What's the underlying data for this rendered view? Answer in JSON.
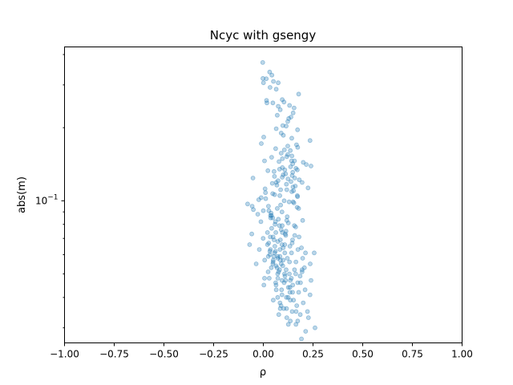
{
  "chart_data": {
    "type": "scatter",
    "title": "Ncyc with gsengy",
    "xlabel": "ρ",
    "ylabel": "abs(m)",
    "xlim": [
      -1.0,
      1.0
    ],
    "ylim": [
      0.026,
      0.43
    ],
    "yscale": "log",
    "xticks": [
      -1.0,
      -0.75,
      -0.5,
      -0.25,
      0.0,
      0.25,
      0.5,
      0.75,
      1.0
    ],
    "xtick_labels": [
      "−1.00",
      "−0.75",
      "−0.50",
      "−0.25",
      "0.00",
      "0.25",
      "0.50",
      "0.75",
      "1.00"
    ],
    "yticks": [
      {
        "value": 0.1,
        "base": "10",
        "exp": "−1"
      }
    ],
    "grid": false,
    "point_color": "#1f77b4",
    "point_alpha": 0.3,
    "series": [
      {
        "points": [
          [
            -0.003,
            0.371
          ],
          [
            0.032,
            0.339
          ],
          [
            0.043,
            0.329
          ],
          [
            -0.002,
            0.319
          ],
          [
            0.015,
            0.318
          ],
          [
            0.051,
            0.31
          ],
          [
            0.075,
            0.306
          ],
          [
            0.001,
            0.306
          ],
          [
            0.034,
            0.293
          ],
          [
            0.065,
            0.288
          ],
          [
            0.178,
            0.275
          ],
          [
            0.016,
            0.259
          ],
          [
            0.095,
            0.261
          ],
          [
            0.104,
            0.255
          ],
          [
            0.018,
            0.253
          ],
          [
            0.048,
            0.253
          ],
          [
            0.132,
            0.247
          ],
          [
            0.155,
            0.241
          ],
          [
            0.085,
            0.237
          ],
          [
            0.15,
            0.23
          ],
          [
            0.07,
            0.225
          ],
          [
            0.128,
            0.218
          ],
          [
            0.123,
            0.212
          ],
          [
            0.098,
            0.204
          ],
          [
            0.065,
            0.198
          ],
          [
            0.172,
            0.196
          ],
          [
            0.101,
            0.186
          ],
          [
            0.002,
            0.183
          ],
          [
            0.143,
            0.181
          ],
          [
            0.235,
            0.177
          ],
          [
            -0.01,
            0.172
          ],
          [
            0.123,
            0.168
          ],
          [
            0.173,
            0.166
          ],
          [
            0.062,
            0.164
          ],
          [
            0.106,
            0.162
          ],
          [
            0.136,
            0.161
          ],
          [
            0.09,
            0.157
          ],
          [
            0.144,
            0.153
          ],
          [
            0.118,
            0.152
          ],
          [
            0.042,
            0.151
          ],
          [
            0.096,
            0.149
          ],
          [
            0.157,
            0.146
          ],
          [
            0.006,
            0.146
          ],
          [
            0.142,
            0.146
          ],
          [
            0.201,
            0.144
          ],
          [
            0.148,
            0.142
          ],
          [
            0.216,
            0.141
          ],
          [
            0.24,
            0.139
          ],
          [
            0.137,
            0.138
          ],
          [
            0.096,
            0.137
          ],
          [
            0.164,
            0.136
          ],
          [
            0.082,
            0.135
          ],
          [
            0.171,
            0.134
          ],
          [
            0.023,
            0.133
          ],
          [
            0.054,
            0.132
          ],
          [
            0.148,
            0.131
          ],
          [
            0.112,
            0.129
          ],
          [
            0.1,
            0.128
          ],
          [
            0.145,
            0.127
          ],
          [
            0.056,
            0.126
          ],
          [
            0.095,
            0.125
          ],
          [
            -0.052,
            0.124
          ],
          [
            0.124,
            0.123
          ],
          [
            0.181,
            0.122
          ],
          [
            0.074,
            0.121
          ],
          [
            0.139,
            0.12
          ],
          [
            0.195,
            0.119
          ],
          [
            0.045,
            0.118
          ],
          [
            0.116,
            0.117
          ],
          [
            0.068,
            0.116
          ],
          [
            0.161,
            0.115
          ],
          [
            0.149,
            0.114
          ],
          [
            0.225,
            0.113
          ],
          [
            0.009,
            0.112
          ],
          [
            0.087,
            0.111
          ],
          [
            0.152,
            0.11
          ],
          [
            0.143,
            0.109
          ],
          [
            0.011,
            0.108
          ],
          [
            0.047,
            0.107
          ],
          [
            0.057,
            0.106
          ],
          [
            0.171,
            0.105
          ],
          [
            0.172,
            0.104
          ],
          [
            -0.011,
            0.103
          ],
          [
            0.012,
            0.102
          ],
          [
            -0.023,
            0.101
          ],
          [
            0.105,
            0.1
          ],
          [
            0.15,
            0.099
          ],
          [
            0.154,
            0.098
          ],
          [
            -0.079,
            0.097
          ],
          [
            0.087,
            0.096
          ],
          [
            -0.056,
            0.095
          ],
          [
            0.17,
            0.094
          ],
          [
            0.178,
            0.093
          ],
          [
            -0.05,
            0.092
          ],
          [
            0.0,
            0.091
          ],
          [
            0.094,
            0.09
          ],
          [
            0.039,
            0.089
          ],
          [
            -0.028,
            0.088
          ],
          [
            0.036,
            0.087
          ],
          [
            0.12,
            0.086
          ],
          [
            0.037,
            0.085
          ],
          [
            0.047,
            0.085
          ],
          [
            0.076,
            0.084
          ],
          [
            0.198,
            0.083
          ],
          [
            0.061,
            0.082
          ],
          [
            0.126,
            0.081
          ],
          [
            0.059,
            0.08
          ],
          [
            0.095,
            0.079
          ],
          [
            0.081,
            0.079
          ],
          [
            0.163,
            0.078
          ],
          [
            0.042,
            0.077
          ],
          [
            0.09,
            0.076
          ],
          [
            0.114,
            0.075
          ],
          [
            0.096,
            0.074
          ],
          [
            0.11,
            0.073
          ],
          [
            -0.058,
            0.073
          ],
          [
            0.158,
            0.072
          ],
          [
            0.035,
            0.071
          ],
          [
            -0.001,
            0.07
          ],
          [
            0.054,
            0.069
          ],
          [
            0.147,
            0.069
          ],
          [
            0.073,
            0.068
          ],
          [
            0.027,
            0.067
          ],
          [
            -0.069,
            0.066
          ],
          [
            0.108,
            0.066
          ],
          [
            0.134,
            0.065
          ],
          [
            0.1,
            0.064
          ],
          [
            0.084,
            0.063
          ],
          [
            0.036,
            0.063
          ],
          [
            0.033,
            0.062
          ],
          [
            0.057,
            0.061
          ],
          [
            0.256,
            0.061
          ],
          [
            0.033,
            0.06
          ],
          [
            0.053,
            0.059
          ],
          [
            0.084,
            0.059
          ],
          [
            0.073,
            0.058
          ],
          [
            0.05,
            0.057
          ],
          [
            0.1,
            0.057
          ],
          [
            0.049,
            0.056
          ],
          [
            0.09,
            0.055
          ],
          [
            -0.036,
            0.055
          ],
          [
            0.064,
            0.054
          ],
          [
            0.207,
            0.053
          ],
          [
            0.069,
            0.053
          ],
          [
            0.195,
            0.052
          ],
          [
            0.077,
            0.051
          ],
          [
            0.195,
            0.051
          ],
          [
            0.107,
            0.05
          ],
          [
            0.131,
            0.05
          ],
          [
            0.109,
            0.049
          ],
          [
            0.073,
            0.048
          ],
          [
            0.006,
            0.048
          ],
          [
            0.136,
            0.047
          ],
          [
            0.105,
            0.046
          ],
          [
            0.173,
            0.046
          ],
          [
            0.003,
            0.045
          ],
          [
            0.064,
            0.045
          ],
          [
            0.126,
            0.044
          ],
          [
            0.134,
            0.044
          ],
          [
            0.21,
            0.043
          ],
          [
            0.065,
            0.043
          ],
          [
            0.147,
            0.042
          ],
          [
            0.094,
            0.041
          ],
          [
            0.235,
            0.041
          ],
          [
            0.116,
            0.04
          ],
          [
            0.072,
            0.04
          ],
          [
            0.152,
            0.039
          ],
          [
            0.136,
            0.039
          ],
          [
            0.084,
            0.038
          ],
          [
            0.168,
            0.037
          ],
          [
            0.089,
            0.037
          ],
          [
            0.085,
            0.036
          ],
          [
            0.117,
            0.036
          ],
          [
            0.222,
            0.035
          ],
          [
            0.145,
            0.035
          ],
          [
            0.078,
            0.034
          ],
          [
            0.186,
            0.034
          ],
          [
            0.118,
            0.033
          ],
          [
            0.227,
            0.033
          ],
          [
            0.136,
            0.032
          ],
          [
            0.173,
            0.032
          ],
          [
            0.164,
            0.031
          ],
          [
            0.126,
            0.031
          ],
          [
            0.26,
            0.03
          ],
          [
            0.213,
            0.029
          ],
          [
            0.192,
            0.027
          ],
          [
            0.041,
            0.087
          ],
          [
            0.156,
            0.079
          ],
          [
            0.063,
            0.074
          ],
          [
            0.113,
            0.072
          ],
          [
            0.086,
            0.069
          ],
          [
            0.021,
            0.066
          ],
          [
            0.192,
            0.064
          ],
          [
            0.142,
            0.061
          ],
          [
            0.072,
            0.059
          ],
          [
            0.121,
            0.058
          ],
          [
            0.164,
            0.056
          ],
          [
            0.048,
            0.055
          ],
          [
            0.098,
            0.054
          ],
          [
            0.157,
            0.052
          ],
          [
            0.024,
            0.051
          ],
          [
            0.185,
            0.049
          ],
          [
            0.112,
            0.047
          ],
          [
            0.062,
            0.046
          ],
          [
            0.148,
            0.045
          ],
          [
            0.092,
            0.043
          ],
          [
            0.178,
            0.042
          ],
          [
            0.125,
            0.04
          ],
          [
            0.05,
            0.039
          ],
          [
            0.201,
            0.038
          ],
          [
            0.103,
            0.036
          ],
          [
            0.165,
            0.035
          ],
          [
            0.134,
            0.042
          ],
          [
            0.082,
            0.052
          ],
          [
            0.058,
            0.065
          ],
          [
            0.18,
            0.071
          ],
          [
            0.118,
            0.083
          ],
          [
            0.07,
            0.093
          ],
          [
            0.13,
            0.099
          ],
          [
            0.026,
            0.095
          ],
          [
            0.083,
            0.105
          ],
          [
            0.118,
            0.111
          ],
          [
            0.065,
            0.119
          ],
          [
            0.158,
            0.124
          ],
          [
            0.108,
            0.134
          ],
          [
            0.079,
            0.145
          ],
          [
            0.123,
            0.155
          ],
          [
            0.167,
            0.17
          ],
          [
            0.09,
            0.19
          ],
          [
            0.115,
            0.203
          ],
          [
            0.139,
            0.221
          ],
          [
            0.075,
            0.245
          ],
          [
            0.021,
            0.074
          ],
          [
            -0.02,
            0.063
          ],
          [
            0.007,
            0.057
          ],
          [
            -0.012,
            0.082
          ],
          [
            0.028,
            0.091
          ],
          [
            0.212,
            0.061
          ],
          [
            0.236,
            0.055
          ],
          [
            0.24,
            0.047
          ],
          [
            0.198,
            0.058
          ],
          [
            0.174,
            0.063
          ],
          [
            0.049,
            0.071
          ],
          [
            0.094,
            0.066
          ],
          [
            0.145,
            0.067
          ],
          [
            0.108,
            0.061
          ],
          [
            0.061,
            0.062
          ],
          [
            0.025,
            0.059
          ],
          [
            0.132,
            0.056
          ],
          [
            0.086,
            0.057
          ],
          [
            0.04,
            0.053
          ],
          [
            0.163,
            0.05
          ],
          [
            0.115,
            0.052
          ],
          [
            0.072,
            0.05
          ],
          [
            0.03,
            0.048
          ],
          [
            0.141,
            0.048
          ],
          [
            0.094,
            0.047
          ],
          [
            0.187,
            0.046
          ]
        ]
      }
    ]
  }
}
